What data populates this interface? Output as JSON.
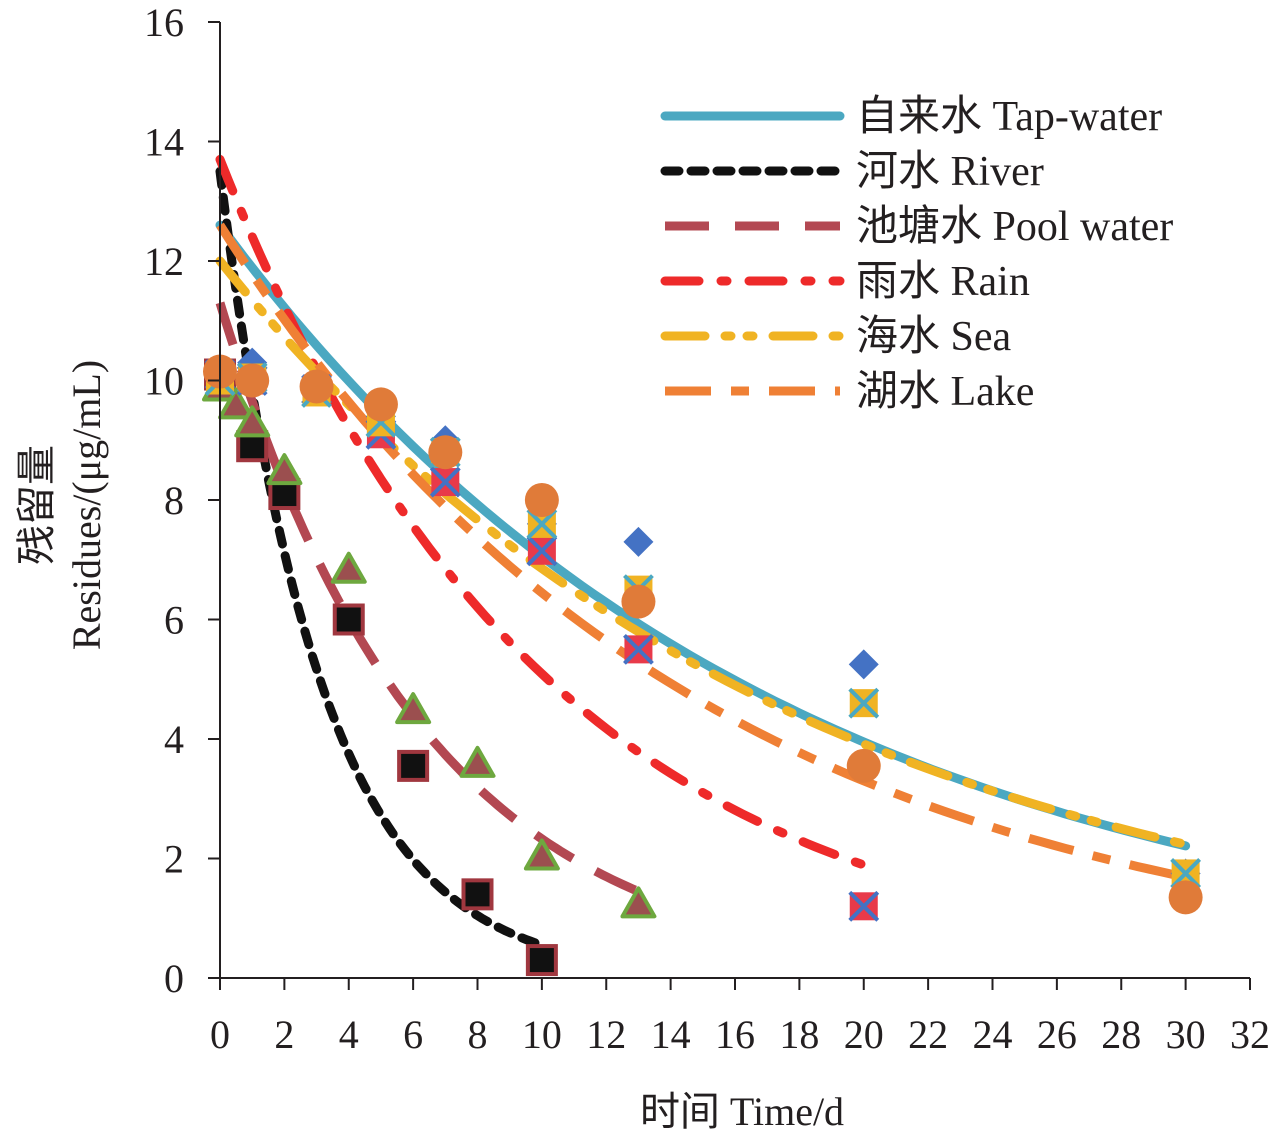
{
  "chart_data": {
    "type": "scatter",
    "title": "",
    "xlabel": "时间 Time/d",
    "ylabel_zh": "残留量",
    "ylabel_en": "Residues/(μg/mL)",
    "xlim": [
      0,
      32
    ],
    "ylim": [
      0,
      16
    ],
    "xticks": [
      "0",
      "2",
      "4",
      "6",
      "8",
      "10",
      "12",
      "14",
      "16",
      "18",
      "20",
      "22",
      "24",
      "26",
      "28",
      "30",
      "32"
    ],
    "yticks": [
      "0",
      "2",
      "4",
      "6",
      "8",
      "10",
      "12",
      "14",
      "16"
    ],
    "grid": false,
    "legend_position": "top-right",
    "series": [
      {
        "name": "自来水 Tap-water",
        "color": "#4ba8c1",
        "dash": "solid",
        "marker": "diamond",
        "marker_color": "#4472c4",
        "x": [
          0,
          1,
          3,
          5,
          7,
          10,
          13,
          20,
          30
        ],
        "y": [
          10.1,
          10.3,
          9.9,
          9.4,
          9.0,
          7.6,
          7.3,
          5.25,
          1.75
        ],
        "fit": {
          "a": 12.6,
          "k": 0.058,
          "xmax": 30
        }
      },
      {
        "name": "河水 River",
        "color": "#111111",
        "dash": "dotted",
        "marker": "square",
        "marker_color": "#111111",
        "marker_stroke": "#a0373f",
        "x": [
          0,
          1,
          2,
          4,
          6,
          8,
          10
        ],
        "y": [
          10.1,
          8.9,
          8.1,
          6.0,
          3.55,
          1.4,
          0.3
        ],
        "fit": {
          "a": 13.5,
          "k": 0.32,
          "xmax": 10
        }
      },
      {
        "name": "池塘水 Pool water",
        "color": "#b34852",
        "dash": "long",
        "marker": "triangle",
        "marker_color": "#9b4f4f",
        "marker_stroke": "#6ea83f",
        "x": [
          0,
          0.5,
          1,
          2,
          4,
          6,
          8,
          10,
          13
        ],
        "y": [
          9.9,
          9.6,
          9.3,
          8.5,
          6.85,
          4.5,
          3.6,
          2.05,
          1.25
        ],
        "fit": {
          "a": 11.3,
          "k": 0.158,
          "xmax": 13
        }
      },
      {
        "name": "雨水 Rain",
        "color": "#ee2a2a",
        "dash": "dashdot",
        "marker": "xsquare",
        "marker_color": "#e83a4a",
        "marker_stroke": "#4472c4",
        "x": [
          0,
          1,
          3,
          5,
          7,
          10,
          13,
          20
        ],
        "y": [
          10.1,
          10.0,
          9.85,
          9.1,
          8.3,
          7.15,
          5.5,
          1.2
        ],
        "fit": {
          "a": 13.7,
          "k": 0.099,
          "xmax": 20
        }
      },
      {
        "name": "海水 Sea",
        "color": "#f0b323",
        "dash": "dashdotdot",
        "marker": "xsquare",
        "marker_color": "#f0b323",
        "marker_stroke": "#4ba8c1",
        "x": [
          0,
          1,
          3,
          5,
          7,
          10,
          13,
          20,
          30
        ],
        "y": [
          10.0,
          10.05,
          9.8,
          9.3,
          8.8,
          7.6,
          6.5,
          4.6,
          1.75
        ],
        "fit": {
          "a": 12.0,
          "k": 0.056,
          "xmax": 30
        }
      },
      {
        "name": "湖水 Lake",
        "color": "#ef8035",
        "dash": "longshort",
        "marker": "circle",
        "marker_color": "#e07b39",
        "x": [
          0,
          1,
          3,
          5,
          7,
          10,
          13,
          20,
          30
        ],
        "y": [
          10.15,
          10.0,
          9.9,
          9.6,
          8.8,
          8.0,
          6.3,
          3.55,
          1.35
        ],
        "fit": {
          "a": 12.6,
          "k": 0.067,
          "xmax": 30
        }
      }
    ]
  }
}
